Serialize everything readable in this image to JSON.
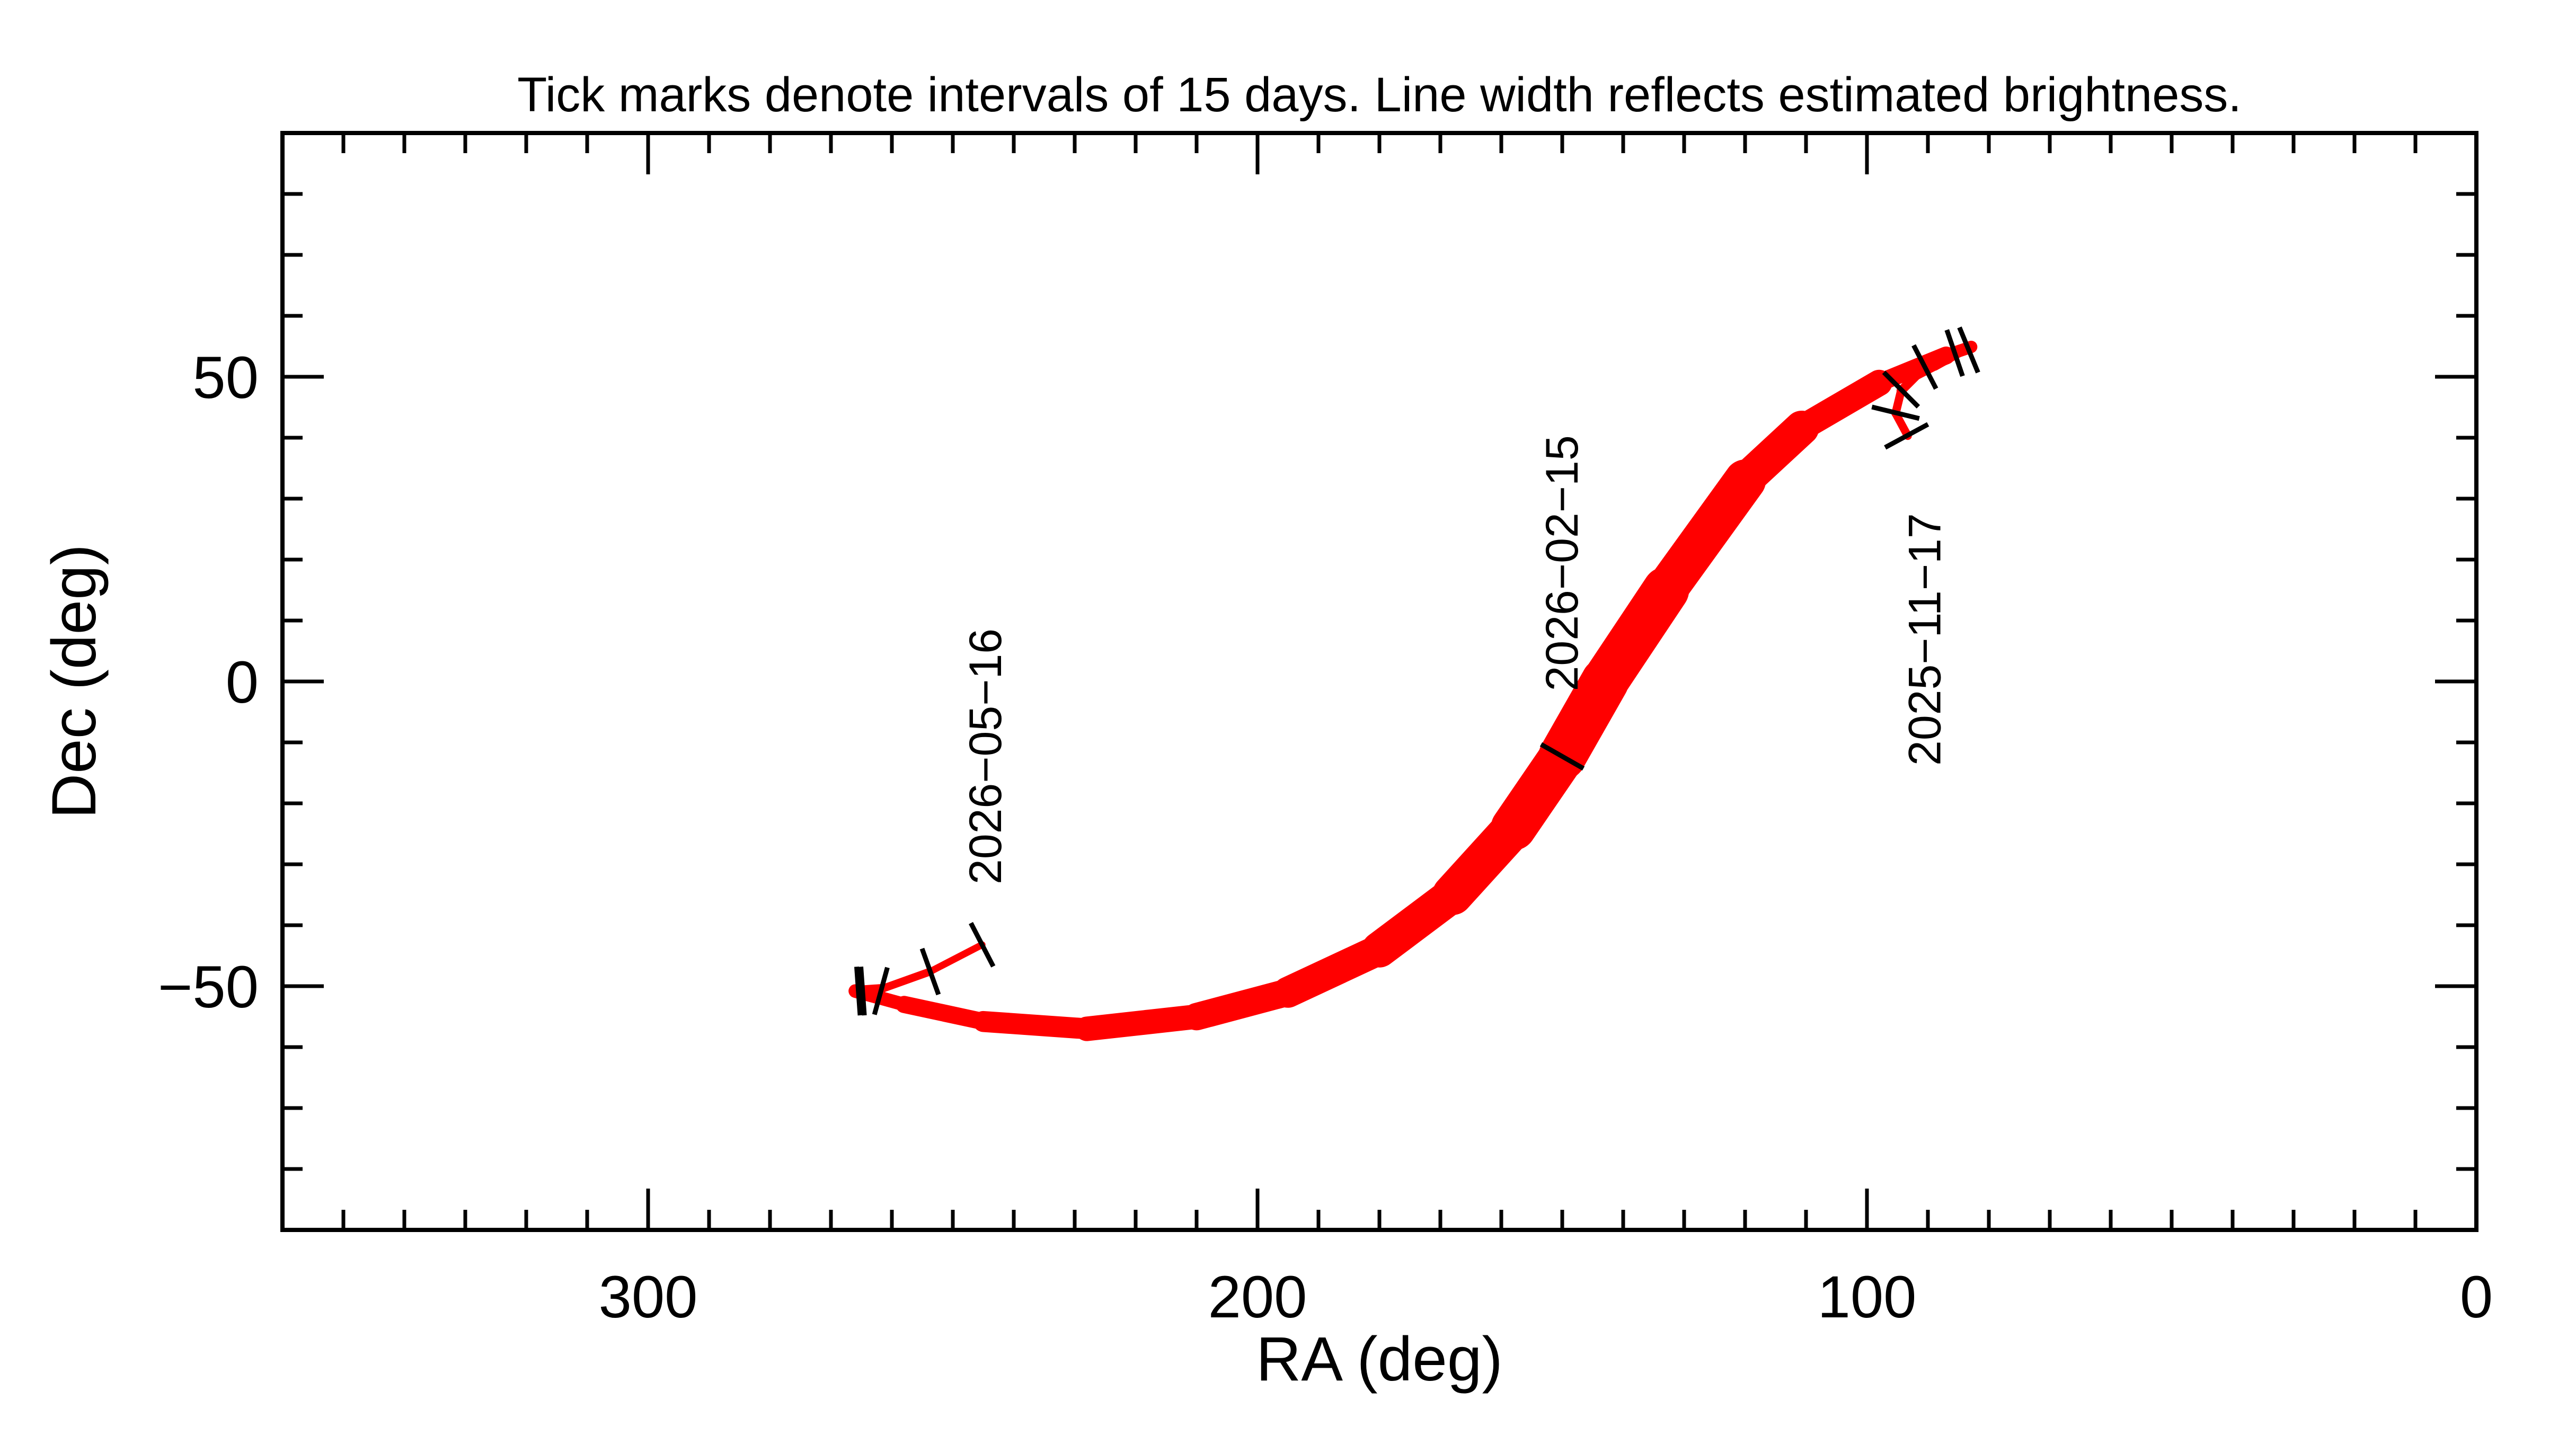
{
  "chart_data": {
    "type": "line",
    "title": "Tick marks denote intervals of 15 days.  Line width reflects estimated brightness.",
    "xlabel": "RA (deg)",
    "ylabel": "Dec (deg)",
    "xlim": [
      360,
      0
    ],
    "ylim": [
      -90,
      90
    ],
    "x_reversed": true,
    "xticks": [
      300,
      200,
      100,
      0
    ],
    "xtick_labels": [
      "300",
      "200",
      "100",
      "0"
    ],
    "yticks": [
      50,
      0,
      -50
    ],
    "ytick_labels": [
      "50",
      "0",
      "−50"
    ],
    "grid": false,
    "colors": {
      "track": "#ff0000",
      "ticks": "#000000",
      "axes": "#000000"
    },
    "track": {
      "ra": [
        93.3,
        95.3,
        94.4,
        91.8,
        88.9,
        84.6,
        82.9,
        87,
        98,
        110.7,
        120,
        133,
        143,
        150,
        158,
        168,
        180,
        195,
        210,
        228,
        245,
        258,
        266,
        261.8,
        253.7,
        245.2
      ],
      "dec": [
        40.3,
        44.0,
        47.7,
        50.3,
        51.8,
        54.2,
        54.9,
        53.5,
        49,
        41.6,
        33,
        15,
        0,
        -12.3,
        -24,
        -35,
        -44,
        -51,
        -55,
        -57,
        -55.8,
        -53,
        -50.8,
        -50.5,
        -47.6,
        -43.2
      ],
      "relative_brightness": [
        0.17,
        0.17,
        0.18,
        0.2,
        0.2,
        0.22,
        0.22,
        0.3,
        0.45,
        0.65,
        0.8,
        0.95,
        1.0,
        1.0,
        0.9,
        0.8,
        0.7,
        0.6,
        0.55,
        0.48,
        0.4,
        0.32,
        0.25,
        0.18,
        0.15,
        0.14
      ]
    },
    "interval_ticks": [
      {
        "ra": 93.5,
        "dec": 40.3
      },
      {
        "ra": 95.3,
        "dec": 44.1
      },
      {
        "ra": 94.4,
        "dec": 47.9
      },
      {
        "ra": 90.5,
        "dec": 51.6
      },
      {
        "ra": 85.6,
        "dec": 53.9
      },
      {
        "ra": 83.3,
        "dec": 54.4
      },
      {
        "ra": 150.0,
        "dec": -12.3
      },
      {
        "ra": 265.5,
        "dec": -50.8
      },
      {
        "ra": 264.8,
        "dec": -50.8
      },
      {
        "ra": 261.8,
        "dec": -50.8
      },
      {
        "ra": 253.7,
        "dec": -47.6
      },
      {
        "ra": 245.2,
        "dec": -43.2
      }
    ],
    "annotations": [
      {
        "text": "2025−11−17",
        "ra": 90.5,
        "dec": 6.9
      },
      {
        "text": "2026−02−15",
        "ra": 150.0,
        "dec": 19.4
      },
      {
        "text": "2026−05−16",
        "ra": 244.6,
        "dec": -12.3
      }
    ]
  }
}
